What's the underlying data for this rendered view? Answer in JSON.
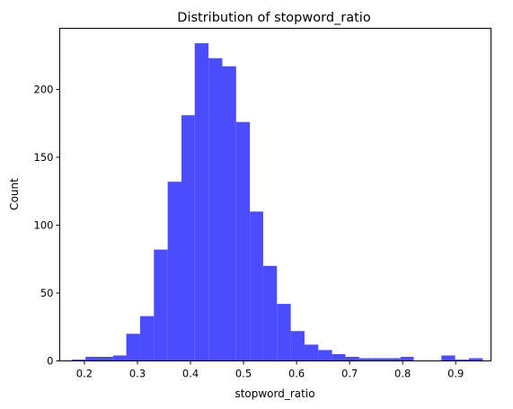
{
  "chart_data": {
    "type": "bar",
    "title": "Distribution of stopword_ratio",
    "xlabel": "stopword_ratio",
    "ylabel": "Count",
    "xlim": [
      0.1535,
      0.9665
    ],
    "ylim": [
      0,
      245
    ],
    "xticks": [
      "0.2",
      "0.3",
      "0.4",
      "0.5",
      "0.6",
      "0.7",
      "0.8",
      "0.9"
    ],
    "xtick_values": [
      0.2,
      0.3,
      0.4,
      0.5,
      0.6,
      0.7,
      0.8,
      0.9
    ],
    "yticks": [
      "0",
      "50",
      "100",
      "150",
      "200"
    ],
    "ytick_values": [
      0,
      50,
      100,
      150,
      200
    ],
    "bins": [
      [
        0.176,
        0.202
      ],
      [
        0.202,
        0.228
      ],
      [
        0.228,
        0.254
      ],
      [
        0.254,
        0.279
      ],
      [
        0.279,
        0.305
      ],
      [
        0.305,
        0.331
      ],
      [
        0.331,
        0.357
      ],
      [
        0.357,
        0.383
      ],
      [
        0.383,
        0.408
      ],
      [
        0.408,
        0.434
      ],
      [
        0.434,
        0.46
      ],
      [
        0.46,
        0.486
      ],
      [
        0.486,
        0.512
      ],
      [
        0.512,
        0.537
      ],
      [
        0.537,
        0.563
      ],
      [
        0.563,
        0.589
      ],
      [
        0.589,
        0.615
      ],
      [
        0.615,
        0.641
      ],
      [
        0.641,
        0.667
      ],
      [
        0.667,
        0.692
      ],
      [
        0.692,
        0.718
      ],
      [
        0.718,
        0.744
      ],
      [
        0.744,
        0.77
      ],
      [
        0.77,
        0.796
      ],
      [
        0.796,
        0.821
      ],
      [
        0.821,
        0.847
      ],
      [
        0.847,
        0.873
      ],
      [
        0.873,
        0.899
      ],
      [
        0.899,
        0.925
      ],
      [
        0.925,
        0.951
      ]
    ],
    "values": [
      1,
      3,
      3,
      4,
      20,
      33,
      82,
      132,
      181,
      234,
      223,
      217,
      176,
      110,
      70,
      42,
      22,
      12,
      8,
      5,
      3,
      2,
      2,
      2,
      3,
      0,
      0,
      4,
      1,
      2
    ],
    "bar_color": "#4b4bff",
    "grid": false
  }
}
